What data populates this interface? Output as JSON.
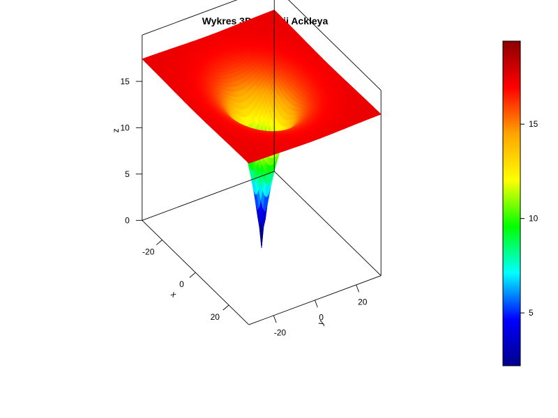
{
  "chart_data": {
    "type": "surface3d",
    "title": "Wykres 3D Funkcji Ackleya",
    "function": "ackley",
    "x_range": [
      -32,
      32
    ],
    "y_range": [
      -32,
      32
    ],
    "z_range": [
      0,
      20
    ],
    "xlabel": "x",
    "ylabel": "y",
    "zlabel": "z",
    "x_ticks": [
      -20,
      0,
      20
    ],
    "y_ticks": [
      -20,
      0,
      20
    ],
    "z_ticks": [
      0,
      5,
      10,
      15
    ],
    "colorbar": {
      "range": [
        2.2,
        19.4
      ],
      "ticks": [
        5,
        10,
        15
      ],
      "palette": [
        "#00008B",
        "#0000FF",
        "#00FFFF",
        "#00FF00",
        "#FFFF00",
        "#FFA500",
        "#FF0000",
        "#8B0000"
      ]
    },
    "grid": false,
    "legend": "right"
  }
}
